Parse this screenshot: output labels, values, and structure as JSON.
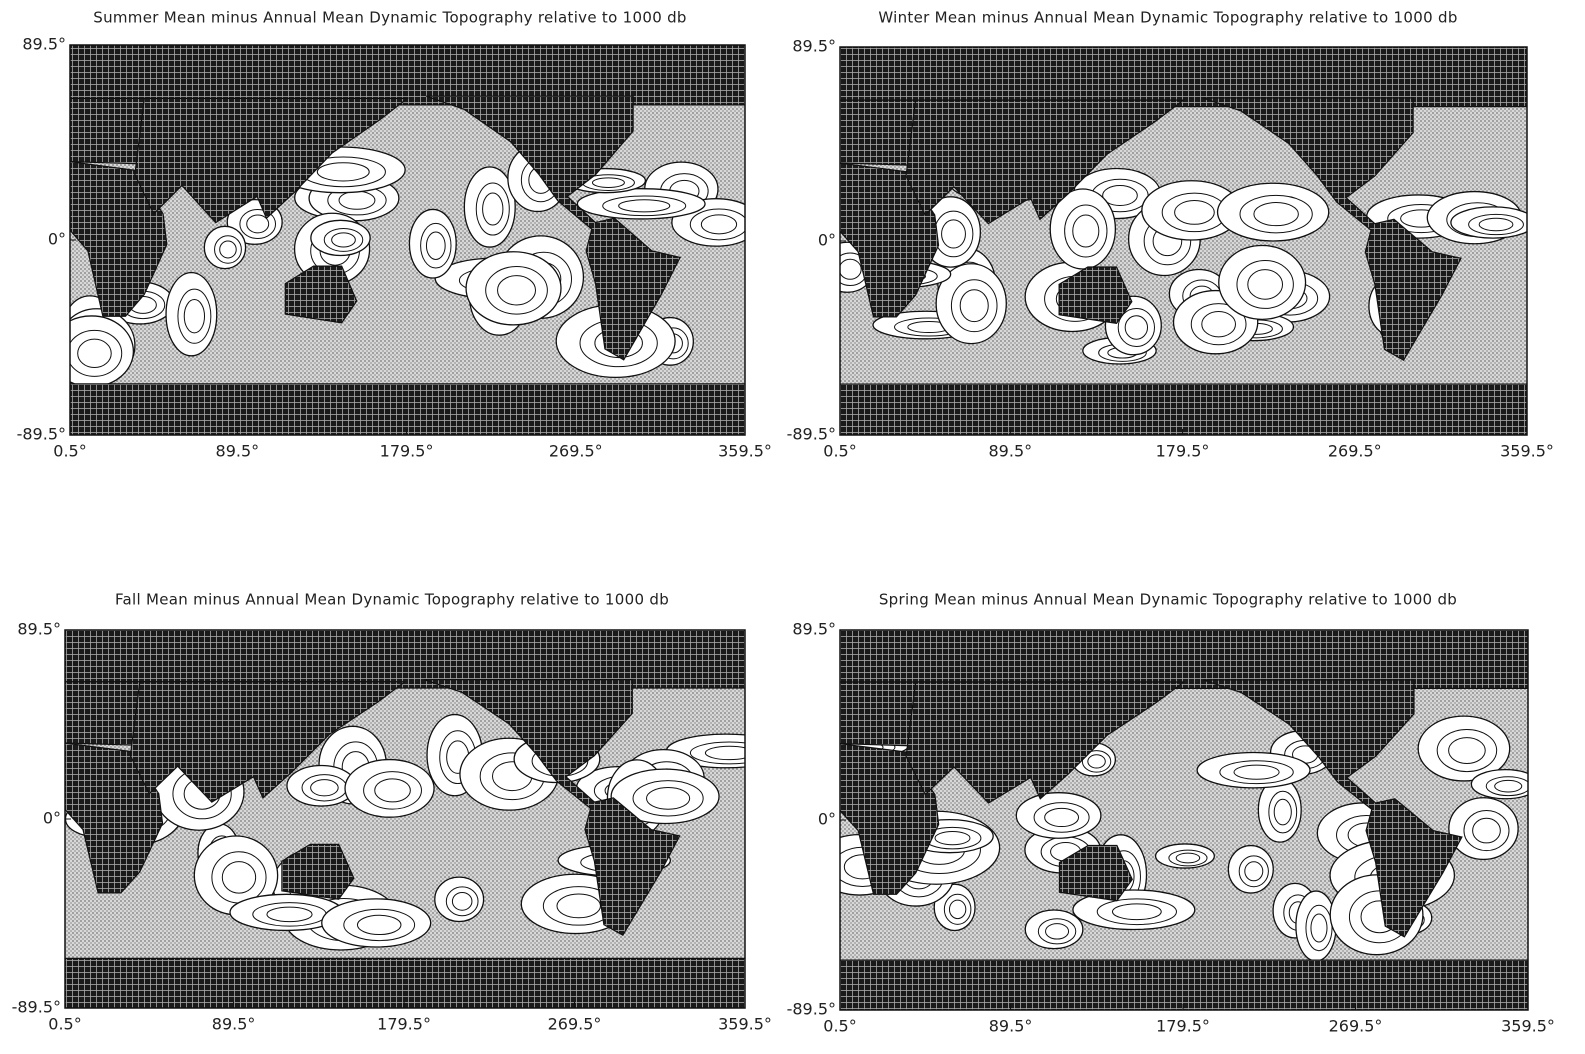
{
  "panels": [
    {
      "title": "Summer Mean minus Annual Mean Dynamic Topography relative to 1000 db",
      "xlim": [
        0.5,
        359.5
      ],
      "ylim": [
        -89.5,
        89.5
      ],
      "xticks": [
        {
          "value": 0.5,
          "label": "0.5°"
        },
        {
          "value": 89.5,
          "label": "89.5°"
        },
        {
          "value": 179.5,
          "label": "179.5°"
        },
        {
          "value": 269.5,
          "label": "269.5°"
        },
        {
          "value": 359.5,
          "label": "359.5°"
        }
      ],
      "yticks": [
        {
          "value": 89.5,
          "label": "89.5°"
        },
        {
          "value": 0,
          "label": "0°"
        },
        {
          "value": -89.5,
          "label": "-89.5°"
        }
      ]
    },
    {
      "title": "Winter Mean minus Annual Mean Dynamic Topography relative to 1000 db",
      "xlim": [
        0.5,
        359.5
      ],
      "ylim": [
        -89.5,
        89.5
      ],
      "xticks": [
        {
          "value": 0.5,
          "label": "0.5°"
        },
        {
          "value": 89.5,
          "label": "89.5°"
        },
        {
          "value": 179.5,
          "label": "179.5°"
        },
        {
          "value": 269.5,
          "label": "269.5°"
        },
        {
          "value": 359.5,
          "label": "359.5°"
        }
      ],
      "yticks": [
        {
          "value": 89.5,
          "label": "89.5°"
        },
        {
          "value": 0,
          "label": "0°"
        },
        {
          "value": -89.5,
          "label": "-89.5°"
        }
      ]
    },
    {
      "title": "Fall Mean minus Annual Mean Dynamic Topography relative to 1000 db",
      "xlim": [
        0.5,
        359.5
      ],
      "ylim": [
        -89.5,
        89.5
      ],
      "xticks": [
        {
          "value": 0.5,
          "label": "0.5°"
        },
        {
          "value": 89.5,
          "label": "89.5°"
        },
        {
          "value": 179.5,
          "label": "179.5°"
        },
        {
          "value": 269.5,
          "label": "269.5°"
        },
        {
          "value": 359.5,
          "label": "359.5°"
        }
      ],
      "yticks": [
        {
          "value": 89.5,
          "label": "89.5°"
        },
        {
          "value": 0,
          "label": "0°"
        },
        {
          "value": -89.5,
          "label": "-89.5°"
        }
      ]
    },
    {
      "title": "Spring Mean minus Annual Mean Dynamic Topography relative to 1000 db",
      "xlim": [
        0.5,
        359.5
      ],
      "ylim": [
        -89.5,
        89.5
      ],
      "xticks": [
        {
          "value": 0.5,
          "label": "0.5°"
        },
        {
          "value": 89.5,
          "label": "89.5°"
        },
        {
          "value": 179.5,
          "label": "179.5°"
        },
        {
          "value": 269.5,
          "label": "269.5°"
        },
        {
          "value": 359.5,
          "label": "359.5°"
        }
      ],
      "yticks": [
        {
          "value": 89.5,
          "label": "89.5°"
        },
        {
          "value": 0,
          "label": "0°"
        },
        {
          "value": -89.5,
          "label": "-89.5°"
        }
      ]
    }
  ]
}
